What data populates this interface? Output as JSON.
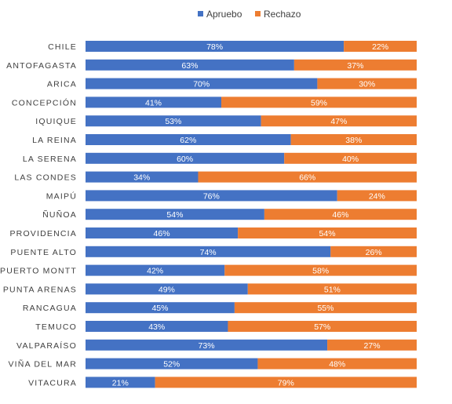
{
  "chart_data": {
    "type": "bar",
    "orientation": "horizontal",
    "stacked": "percent",
    "title": "",
    "xlabel": "",
    "ylabel": "",
    "xlim": [
      0,
      100
    ],
    "grid": false,
    "legend_position": "top",
    "data_labels": true,
    "categories": [
      "CHILE",
      "ANTOFAGASTA",
      "ARICA",
      "CONCEPCIÓN",
      "IQUIQUE",
      "LA REINA",
      "LA SERENA",
      "LAS CONDES",
      "MAIPÚ",
      "ÑUÑOA",
      "PROVIDENCIA",
      "PUENTE ALTO",
      "PUERTO MONTT",
      "PUNTA ARENAS",
      "RANCAGUA",
      "TEMUCO",
      "VALPARAÍSO",
      "VIÑA DEL MAR",
      "VITACURA"
    ],
    "series": [
      {
        "name": "Apruebo",
        "color": "#4472C4",
        "values": [
          78,
          63,
          70,
          41,
          53,
          62,
          60,
          34,
          76,
          54,
          46,
          74,
          42,
          49,
          45,
          43,
          73,
          52,
          21
        ]
      },
      {
        "name": "Rechazo",
        "color": "#ED7D31",
        "values": [
          22,
          37,
          30,
          59,
          47,
          38,
          40,
          66,
          24,
          46,
          54,
          26,
          58,
          51,
          55,
          57,
          27,
          48,
          79
        ]
      }
    ]
  }
}
